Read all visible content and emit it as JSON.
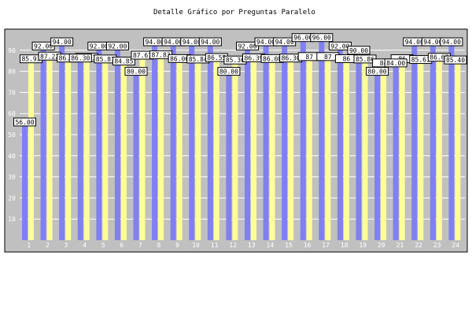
{
  "chart_data": {
    "type": "bar",
    "title": "Detalle Gráfico por Preguntas Paralelo",
    "xlabel": "",
    "ylabel": "",
    "ylim": [
      0,
      100
    ],
    "yticks": [
      10,
      20,
      30,
      40,
      50,
      60,
      70,
      80,
      90
    ],
    "grid": true,
    "categories": [
      "1",
      "2",
      "3",
      "4",
      "5",
      "6",
      "7",
      "8",
      "9",
      "10",
      "11",
      "12",
      "13",
      "14",
      "15",
      "16",
      "17",
      "18",
      "19",
      "20",
      "21",
      "22",
      "23",
      "24"
    ],
    "series": [
      {
        "color": "#8080f0",
        "values": [
          56.0,
          92.0,
          94.0,
          86.3,
          92.0,
          92.0,
          80.0,
          94.0,
          94.0,
          94.0,
          94.0,
          80.0,
          92.0,
          94.0,
          94.0,
          96.0,
          96.0,
          92.0,
          90.0,
          80.0,
          84.0,
          94.0,
          94.0,
          94.0
        ],
        "value_labels": [
          "56.00",
          "92.00",
          "94.00",
          "86.30",
          "92.00",
          "92.00",
          "80.00",
          "94.00",
          "94.00",
          "94.00",
          "94.00",
          "80.00",
          "92.00",
          "94.00",
          "94.00",
          "96.00",
          "96.00",
          "92.00",
          "90.00",
          "80.00",
          "84.00",
          "94.00",
          "94.00",
          "94.00"
        ]
      },
      {
        "color": "#ffff99",
        "values": [
          85.93,
          87.22,
          86.3,
          86.63,
          85.87,
          84.85,
          87.67,
          87.83,
          86.06,
          85.84,
          86.55,
          85.36,
          86.39,
          86.08,
          86.3,
          87.0,
          87.0,
          86.0,
          85.86,
          84.0,
          86.0,
          85.61,
          86.67,
          85.4
        ],
        "value_labels": [
          "85.93",
          "87.22",
          "86.30",
          "86.63",
          "85.87",
          "84.85",
          "87.67",
          "87.83",
          "86.06",
          "85.84",
          "86.55",
          "85.36",
          "86.39",
          "86.08",
          "86.30",
          "87",
          "87",
          "86",
          "85.86",
          "84",
          "86",
          "85.61",
          "86.67",
          "85.40"
        ]
      }
    ],
    "colors": {
      "plot_background": "#c0c0c0",
      "grid": "#ffffff",
      "tick_label": "#ffffff",
      "label_box": "#ffffff",
      "label_border": "#000000"
    }
  }
}
